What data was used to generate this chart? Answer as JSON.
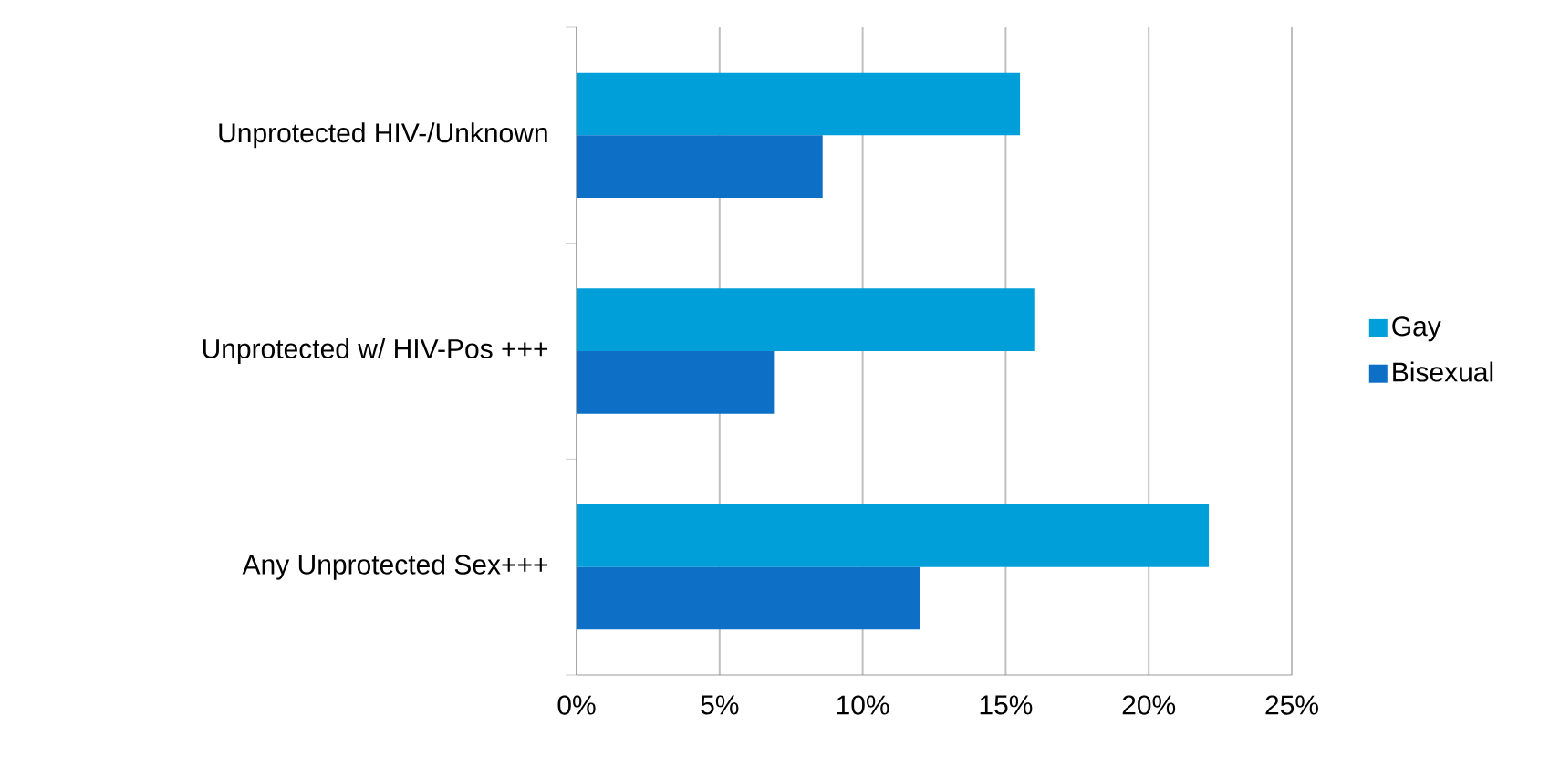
{
  "chart_data": {
    "type": "bar",
    "orientation": "horizontal",
    "categories": [
      "Unprotected HIV-/Unknown",
      "Unprotected w/ HIV-Pos +++",
      "Any Unprotected Sex+++"
    ],
    "series": [
      {
        "name": "Gay",
        "color": "#009fda",
        "values": [
          15.5,
          16.0,
          22.1
        ]
      },
      {
        "name": "Bisexual",
        "color": "#0e6fc6",
        "values": [
          8.6,
          6.9,
          12.0
        ]
      }
    ],
    "xlim": [
      0,
      25
    ],
    "xticks": [
      {
        "value": 0,
        "label": "0%"
      },
      {
        "value": 5,
        "label": "5%"
      },
      {
        "value": 10,
        "label": "10%"
      },
      {
        "value": 15,
        "label": "15%"
      },
      {
        "value": 20,
        "label": "20%"
      },
      {
        "value": 25,
        "label": "25%"
      }
    ],
    "grid": "x",
    "legend": "right"
  }
}
